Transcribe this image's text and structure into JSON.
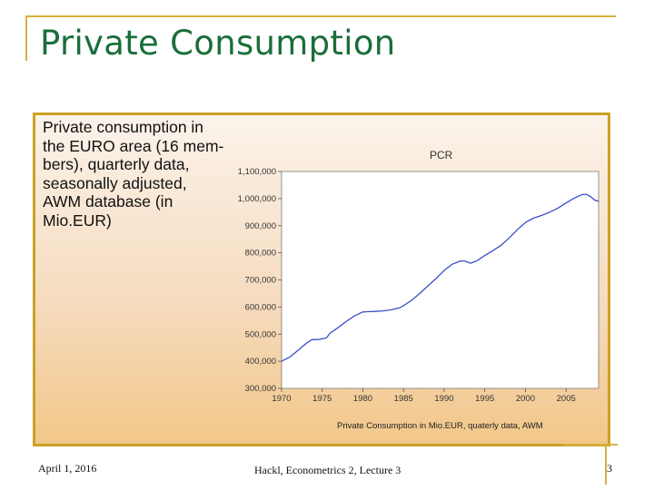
{
  "slide": {
    "title": "Private Consumption",
    "description": "Private consumption in\nthe EURO area (16 mem-\nbers), quarterly data,\nseasonally adjusted,\nAWM database (in\nMio.EUR)"
  },
  "footer": {
    "date": "April 1, 2016",
    "center": "Hackl, Econometrics 2, Lecture 3",
    "page": "3"
  },
  "colors": {
    "title": "#1a6e3a",
    "accent": "#c9a227",
    "series_line": "#3a4fc8"
  },
  "chart_data": {
    "type": "line",
    "title": "PCR",
    "xlabel": "Private Consumption in Mio.EUR, quaterly data, AWM",
    "ylabel": "",
    "xlim": [
      1970,
      2009
    ],
    "ylim": [
      300000,
      1100000
    ],
    "x_ticks": [
      1970,
      1975,
      1980,
      1985,
      1990,
      1995,
      2000,
      2005
    ],
    "x_tick_labels": [
      "1970",
      "1975",
      "1980",
      "1985",
      "1990",
      "1995",
      "2000",
      "2005"
    ],
    "y_ticks": [
      300000,
      400000,
      500000,
      600000,
      700000,
      800000,
      900000,
      1000000,
      1100000
    ],
    "y_tick_labels": [
      "300,000",
      "400,000",
      "500,000",
      "600,000",
      "700,000",
      "800,000",
      "900,000",
      "1,000,000",
      "1,100,000"
    ],
    "grid": false,
    "legend": "none",
    "series": [
      {
        "x": [
          1970.0,
          1971.0,
          1972.0,
          1973.0,
          1973.75,
          1974.5,
          1975.5,
          1976.0,
          1977.0,
          1978.0,
          1979.0,
          1980.0,
          1980.5,
          1981.5,
          1982.5,
          1983.5,
          1984.5,
          1985.0,
          1986.0,
          1987.0,
          1988.0,
          1989.0,
          1990.0,
          1991.0,
          1992.0,
          1992.5,
          1993.25,
          1994.0,
          1995.0,
          1996.0,
          1997.0,
          1998.0,
          1999.0,
          2000.0,
          2001.0,
          2002.0,
          2003.0,
          2004.0,
          2005.0,
          2006.0,
          2007.0,
          2007.5,
          2008.0,
          2008.5,
          2009.0
        ],
        "y": [
          400000,
          415000,
          440000,
          465000,
          480000,
          480000,
          486000,
          505000,
          525000,
          548000,
          568000,
          582000,
          583000,
          584000,
          586000,
          590000,
          597000,
          605000,
          625000,
          650000,
          678000,
          705000,
          735000,
          758000,
          770000,
          770000,
          762000,
          770000,
          790000,
          808000,
          828000,
          855000,
          885000,
          912000,
          928000,
          938000,
          950000,
          965000,
          984000,
          1002000,
          1015000,
          1016000,
          1008000,
          995000,
          990000
        ]
      }
    ]
  }
}
